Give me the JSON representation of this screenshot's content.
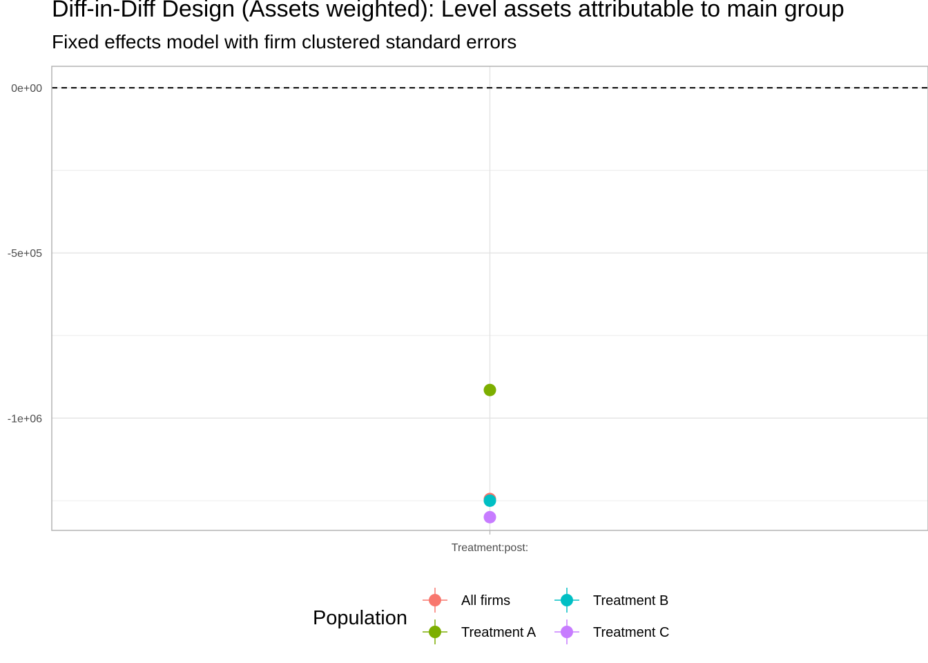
{
  "title": "Diff-in-Diff Design (Assets weighted): Level assets attributable to main group",
  "subtitle": "Fixed effects model with firm clustered standard errors",
  "chart_data": {
    "type": "scatter",
    "title": "Diff-in-Diff Design (Assets weighted): Level assets attributable to main group",
    "subtitle": "Fixed effects model with firm clustered standard errors",
    "xlabel": "",
    "ylabel": "",
    "categories": [
      "Treatment:post:"
    ],
    "ylim": [
      -1340000,
      65000
    ],
    "yticks": [
      {
        "value": 0,
        "label": "0e+00"
      },
      {
        "value": -500000,
        "label": "-5e+05"
      },
      {
        "value": -1000000,
        "label": "-1e+06"
      }
    ],
    "reference_line": {
      "value": 0,
      "style": "dashed"
    },
    "grid": true,
    "legend": {
      "title": "Population",
      "position": "bottom"
    },
    "series": [
      {
        "name": "All firms",
        "color": "#F8766D",
        "values": [
          -1245000
        ]
      },
      {
        "name": "Treatment A",
        "color": "#7CAE00",
        "values": [
          -915000
        ]
      },
      {
        "name": "Treatment B",
        "color": "#00BFC4",
        "values": [
          -1250000
        ]
      },
      {
        "name": "Treatment C",
        "color": "#C77CFF",
        "values": [
          -1300000
        ]
      }
    ]
  }
}
